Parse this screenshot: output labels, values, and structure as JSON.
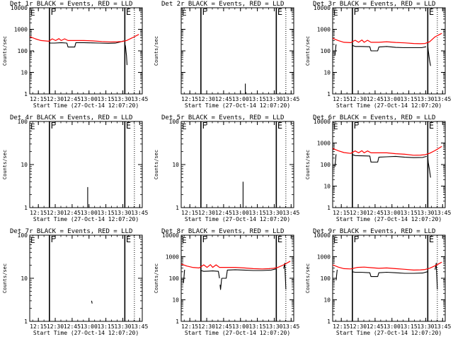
{
  "figure": {
    "xlabel_template": "Start Time (27-Oct-14 12:07:20)",
    "ylabel": "Counts/sec",
    "x_ticks": [
      "12:15",
      "12:30",
      "12:45",
      "13:00",
      "13:15",
      "13:30",
      "13:45"
    ],
    "x_tick_minutes": [
      7.67,
      22.67,
      37.67,
      52.67,
      67.67,
      82.67,
      97.67
    ],
    "xlim_minutes": [
      0,
      100
    ],
    "colors": {
      "events": "#000000",
      "lld": "#ff0000",
      "axes": "#000000"
    },
    "markers": [
      {
        "label": "F",
        "minute": 17.5,
        "style": "solid"
      },
      {
        "label": "E",
        "minute": 84.5,
        "style": "solid"
      },
      {
        "label": "",
        "minute": 93,
        "style": "dotted"
      }
    ]
  },
  "chart_data": [
    {
      "type": "line",
      "title": "Det 1r BLACK = Events, RED = LLD",
      "ylim": [
        1,
        10000
      ],
      "y_ticks": [
        "1",
        "10",
        "100",
        "1000",
        "10000"
      ],
      "series": [
        {
          "name": "Events",
          "color": "#000000",
          "segments": [
            {
              "x": [
                3,
                4
              ],
              "y": [
                90,
                90
              ]
            },
            {
              "x": [
                17.5,
                18,
                22,
                28,
                33,
                34,
                40,
                41,
                48,
                55,
                62,
                70,
                76,
                80,
                83.5
              ],
              "y": [
                260,
                230,
                230,
                240,
                230,
                150,
                150,
                240,
                240,
                235,
                230,
                225,
                228,
                255,
                290
              ]
            },
            {
              "x": [
                84.5,
                85,
                86,
                86.5
              ],
              "y": [
                200,
                170,
                60,
                22
              ]
            }
          ]
        },
        {
          "name": "LLD",
          "color": "#ff0000",
          "segments": [
            {
              "x": [
                0,
                5,
                10,
                17,
                20,
                23,
                26,
                28,
                31,
                34,
                40,
                48,
                56,
                64,
                72,
                78,
                82,
                86,
                91,
                97
              ],
              "y": [
                460,
                360,
                300,
                280,
                360,
                300,
                370,
                300,
                360,
                300,
                300,
                300,
                290,
                270,
                260,
                265,
                270,
                300,
                400,
                580
              ]
            }
          ]
        }
      ]
    },
    {
      "type": "line",
      "title": "Det 2r BLACK = Events, RED = LLD",
      "ylim": [
        1,
        10000
      ],
      "y_ticks": [
        "",
        "",
        "",
        "",
        ""
      ],
      "series": [
        {
          "name": "Events",
          "color": "#000000",
          "segments": [
            {
              "x": [
                57,
                57
              ],
              "y": [
                1,
                3
              ]
            }
          ]
        },
        {
          "name": "LLD",
          "color": "#ff0000",
          "segments": []
        }
      ]
    },
    {
      "type": "line",
      "title": "Det 3r BLACK = Events, RED = LLD",
      "ylim": [
        1,
        10000
      ],
      "y_ticks": [
        "1",
        "10",
        "100",
        "1000",
        "10000"
      ],
      "series": [
        {
          "name": "Events",
          "color": "#000000",
          "segments": [
            {
              "x": [
                2,
                3
              ],
              "y": [
                60,
                200
              ]
            },
            {
              "x": [
                17.5,
                20,
                25,
                33,
                34,
                40,
                41,
                48,
                56,
                64,
                72,
                79,
                83
              ],
              "y": [
                180,
                160,
                160,
                155,
                100,
                100,
                150,
                160,
                145,
                140,
                140,
                140,
                155
              ]
            },
            {
              "x": [
                84.5,
                85,
                86,
                87
              ],
              "y": [
                160,
                100,
                40,
                20
              ]
            }
          ]
        },
        {
          "name": "LLD",
          "color": "#ff0000",
          "segments": [
            {
              "x": [
                0,
                5,
                10,
                16,
                20,
                23,
                26,
                28,
                31,
                34,
                41,
                48,
                56,
                64,
                72,
                78,
                82,
                86,
                91,
                97
              ],
              "y": [
                380,
                300,
                250,
                240,
                310,
                250,
                320,
                250,
                310,
                250,
                250,
                265,
                245,
                235,
                220,
                215,
                220,
                260,
                450,
                650
              ]
            }
          ]
        }
      ]
    },
    {
      "type": "line",
      "title": "Det 4r BLACK = Events, RED = LLD",
      "ylim": [
        1,
        100
      ],
      "y_ticks": [
        "1",
        "10",
        "100"
      ],
      "series": [
        {
          "name": "Events",
          "color": "#000000",
          "segments": [
            {
              "x": [
                51.5,
                51.5
              ],
              "y": [
                1,
                3
              ]
            }
          ]
        },
        {
          "name": "LLD",
          "color": "#ff0000",
          "segments": []
        }
      ]
    },
    {
      "type": "line",
      "title": "Det 5r BLACK = Events, RED = LLD",
      "ylim": [
        1,
        100
      ],
      "y_ticks": [
        "1",
        "10",
        "100"
      ],
      "series": [
        {
          "name": "Events",
          "color": "#000000",
          "segments": [
            {
              "x": [
                55,
                55
              ],
              "y": [
                1,
                4
              ]
            }
          ]
        },
        {
          "name": "LLD",
          "color": "#ff0000",
          "segments": []
        }
      ]
    },
    {
      "type": "line",
      "title": "Det 6r BLACK = Events, RED = LLD",
      "ylim": [
        1,
        10000
      ],
      "y_ticks": [
        "1",
        "10",
        "100",
        "1000",
        "10000"
      ],
      "series": [
        {
          "name": "Events",
          "color": "#000000",
          "segments": [
            {
              "x": [
                2,
                3
              ],
              "y": [
                80,
                300
              ]
            },
            {
              "x": [
                17.5,
                20,
                25,
                33,
                34,
                40,
                41,
                48,
                56,
                64,
                72,
                80,
                83.5
              ],
              "y": [
                290,
                260,
                255,
                250,
                130,
                130,
                220,
                230,
                240,
                220,
                210,
                215,
                240
              ]
            },
            {
              "x": [
                84.5,
                85,
                86,
                87
              ],
              "y": [
                200,
                120,
                60,
                25
              ]
            }
          ]
        },
        {
          "name": "LLD",
          "color": "#ff0000",
          "segments": [
            {
              "x": [
                0,
                5,
                10,
                16,
                20,
                23,
                26,
                28,
                31,
                34,
                41,
                48,
                56,
                64,
                72,
                78,
                82,
                86,
                91,
                97
              ],
              "y": [
                560,
                440,
                360,
                330,
                430,
                350,
                440,
                350,
                430,
                350,
                350,
                350,
                320,
                300,
                270,
                275,
                285,
                330,
                450,
                700
              ]
            }
          ]
        }
      ]
    },
    {
      "type": "line",
      "title": "Det 7r BLACK = Events, RED = LLD",
      "ylim": [
        1,
        100
      ],
      "y_ticks": [
        "1",
        "10",
        "100"
      ],
      "series": [
        {
          "name": "Events",
          "color": "#000000",
          "segments": [
            {
              "x": [
                55,
                55.5
              ],
              "y": [
                3,
                2.6
              ]
            }
          ]
        },
        {
          "name": "LLD",
          "color": "#ff0000",
          "segments": []
        }
      ]
    },
    {
      "type": "line",
      "title": "Det 8r BLACK = Events, RED = LLD",
      "ylim": [
        1,
        10000
      ],
      "y_ticks": [
        "1",
        "10",
        "100",
        "1000",
        "10000"
      ],
      "series": [
        {
          "name": "Events",
          "color": "#000000",
          "segments": [
            {
              "x": [
                2,
                3
              ],
              "y": [
                60,
                250
              ]
            },
            {
              "x": [
                17.5,
                20,
                24,
                28,
                33,
                34
              ],
              "y": [
                230,
                210,
                215,
                220,
                210,
                100
              ]
            },
            {
              "x": [
                34.5,
                35,
                36
              ],
              "y": [
                50,
                30,
                100
              ]
            },
            {
              "x": [
                36,
                40,
                41,
                48,
                56,
                64,
                72,
                80,
                84
              ],
              "y": [
                100,
                100,
                240,
                250,
                240,
                230,
                230,
                240,
                270
              ]
            },
            {
              "x": [
                91,
                92,
                93
              ],
              "y": [
                280,
                500,
                30
              ]
            }
          ]
        },
        {
          "name": "LLD",
          "color": "#ff0000",
          "segments": [
            {
              "x": [
                0,
                5,
                10,
                16,
                20,
                23,
                26,
                28,
                31,
                34,
                40,
                48,
                56,
                64,
                72,
                78,
                82,
                86,
                91,
                97
              ],
              "y": [
                460,
                370,
                320,
                300,
                420,
                320,
                430,
                320,
                420,
                320,
                320,
                320,
                300,
                280,
                270,
                280,
                290,
                320,
                420,
                620
              ]
            }
          ]
        }
      ]
    },
    {
      "type": "line",
      "title": "Det 9r BLACK = Events, RED = LLD",
      "ylim": [
        1,
        10000
      ],
      "y_ticks": [
        "1",
        "10",
        "100",
        "1000",
        "10000"
      ],
      "series": [
        {
          "name": "Events",
          "color": "#000000",
          "segments": [
            {
              "x": [
                3,
                4
              ],
              "y": [
                80,
                250
              ]
            },
            {
              "x": [
                17.5,
                20,
                25,
                33,
                34,
                40,
                41,
                48,
                56,
                64,
                72,
                80,
                84
              ],
              "y": [
                200,
                190,
                190,
                180,
                120,
                120,
                180,
                190,
                180,
                170,
                170,
                175,
                200
              ]
            },
            {
              "x": [
                91,
                92,
                93
              ],
              "y": [
                250,
                500,
                30
              ]
            }
          ]
        },
        {
          "name": "LLD",
          "color": "#ff0000",
          "segments": [
            {
              "x": [
                0,
                5,
                10,
                16,
                22,
                28,
                34,
                41,
                48,
                56,
                64,
                72,
                78,
                82,
                86,
                91,
                97
              ],
              "y": [
                420,
                330,
                280,
                270,
                320,
                330,
                310,
                290,
                300,
                280,
                260,
                240,
                245,
                255,
                290,
                380,
                560
              ]
            }
          ]
        }
      ]
    }
  ]
}
